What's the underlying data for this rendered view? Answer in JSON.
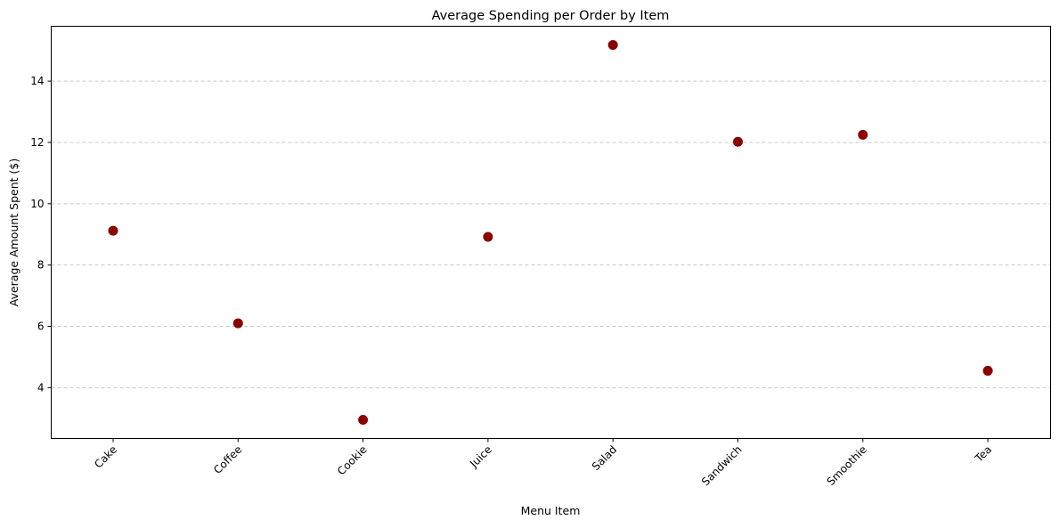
{
  "chart_data": {
    "type": "scatter",
    "title": "Average Spending per Order by Item",
    "xlabel": "Menu Item",
    "ylabel": "Average Amount Spent ($)",
    "categories": [
      "Cake",
      "Coffee",
      "Cookie",
      "Juice",
      "Salad",
      "Sandwich",
      "Smoothie",
      "Tea"
    ],
    "values": [
      9.12,
      6.1,
      2.95,
      8.92,
      15.18,
      12.02,
      12.25,
      4.55
    ],
    "ylim": [
      2.34,
      15.79
    ],
    "yticks": [
      4,
      6,
      8,
      10,
      12,
      14
    ],
    "ytick_labels": [
      "4",
      "6",
      "8",
      "10",
      "12",
      "14"
    ],
    "grid": "y-dashed",
    "marker_color": "#8b0000",
    "grid_color": "#c8c8c8"
  }
}
